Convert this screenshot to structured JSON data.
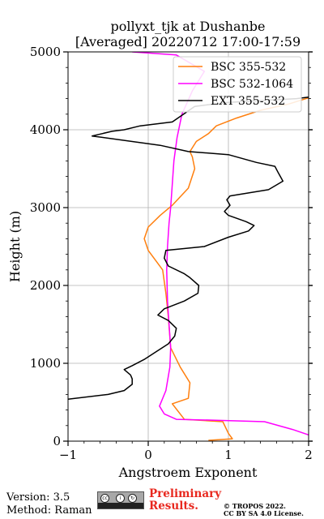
{
  "chart_data": {
    "type": "line",
    "title_line1": "pollyxt_tjk at Dushanbe",
    "title_line2": "[Averaged] 20220712 17:00-17:59",
    "xlabel": "Angstroem Exponent",
    "ylabel": "Height (m)",
    "xlim": [
      -1,
      2
    ],
    "ylim": [
      0,
      5000
    ],
    "xticks": [
      -1,
      0,
      1,
      2
    ],
    "xtick_labels": [
      "−1",
      "0",
      "1",
      "2"
    ],
    "yticks": [
      0,
      1000,
      2000,
      3000,
      4000,
      5000
    ],
    "ytick_labels": [
      "0",
      "1000",
      "2000",
      "3000",
      "4000",
      "5000"
    ],
    "grid": true,
    "legend_position": "top-right",
    "series": [
      {
        "name": "BSC 355-532",
        "color": "#ff7f0e",
        "points": [
          [
            0.75,
            10
          ],
          [
            1.05,
            30
          ],
          [
            1.0,
            100
          ],
          [
            0.93,
            250
          ],
          [
            0.45,
            280
          ],
          [
            0.3,
            480
          ],
          [
            0.5,
            550
          ],
          [
            0.52,
            750
          ],
          [
            0.4,
            950
          ],
          [
            0.28,
            1200
          ],
          [
            0.25,
            1600
          ],
          [
            0.22,
            1900
          ],
          [
            0.18,
            2200
          ],
          [
            0.0,
            2450
          ],
          [
            -0.05,
            2600
          ],
          [
            0.0,
            2750
          ],
          [
            0.15,
            2900
          ],
          [
            0.3,
            3030
          ],
          [
            0.5,
            3250
          ],
          [
            0.58,
            3500
          ],
          [
            0.55,
            3650
          ],
          [
            0.52,
            3720
          ],
          [
            0.6,
            3850
          ],
          [
            0.75,
            3950
          ],
          [
            0.85,
            4050
          ],
          [
            1.1,
            4150
          ],
          [
            1.4,
            4250
          ],
          [
            1.75,
            4330
          ],
          [
            2.0,
            4410
          ]
        ]
      },
      {
        "name": "BSC 532-1064",
        "color": "#ff00ff",
        "points": [
          [
            2.0,
            80
          ],
          [
            1.8,
            150
          ],
          [
            1.45,
            250
          ],
          [
            0.8,
            270
          ],
          [
            0.35,
            280
          ],
          [
            0.2,
            350
          ],
          [
            0.14,
            450
          ],
          [
            0.22,
            650
          ],
          [
            0.27,
            950
          ],
          [
            0.28,
            1200
          ],
          [
            0.26,
            1500
          ],
          [
            0.24,
            1800
          ],
          [
            0.23,
            2200
          ],
          [
            0.24,
            2500
          ],
          [
            0.26,
            2800
          ],
          [
            0.28,
            3000
          ],
          [
            0.3,
            3300
          ],
          [
            0.32,
            3600
          ],
          [
            0.36,
            3900
          ],
          [
            0.42,
            4200
          ],
          [
            0.55,
            4500
          ],
          [
            0.7,
            4750
          ],
          [
            0.35,
            4960
          ],
          [
            -0.2,
            5000
          ]
        ]
      },
      {
        "name": "EXT 355-532",
        "color": "#000000",
        "points": [
          [
            -1.0,
            540
          ],
          [
            -0.5,
            600
          ],
          [
            -0.3,
            650
          ],
          [
            -0.2,
            730
          ],
          [
            -0.2,
            800
          ],
          [
            -0.22,
            850
          ],
          [
            -0.3,
            920
          ],
          [
            -0.2,
            970
          ],
          [
            -0.05,
            1050
          ],
          [
            0.1,
            1150
          ],
          [
            0.25,
            1250
          ],
          [
            0.33,
            1350
          ],
          [
            0.35,
            1450
          ],
          [
            0.25,
            1550
          ],
          [
            0.12,
            1620
          ],
          [
            0.2,
            1700
          ],
          [
            0.45,
            1800
          ],
          [
            0.62,
            1900
          ],
          [
            0.63,
            2000
          ],
          [
            0.52,
            2100
          ],
          [
            0.45,
            2150
          ],
          [
            0.25,
            2250
          ],
          [
            0.2,
            2350
          ],
          [
            0.22,
            2450
          ],
          [
            0.7,
            2500
          ],
          [
            1.0,
            2620
          ],
          [
            1.25,
            2700
          ],
          [
            1.32,
            2770
          ],
          [
            1.22,
            2820
          ],
          [
            1.0,
            2900
          ],
          [
            0.95,
            2950
          ],
          [
            1.02,
            3030
          ],
          [
            0.98,
            3100
          ],
          [
            1.02,
            3150
          ],
          [
            1.5,
            3230
          ],
          [
            1.68,
            3340
          ],
          [
            1.62,
            3450
          ],
          [
            1.58,
            3530
          ],
          [
            1.35,
            3580
          ],
          [
            1.0,
            3680
          ],
          [
            0.5,
            3720
          ],
          [
            0.15,
            3800
          ],
          [
            -0.7,
            3920
          ],
          [
            -0.45,
            3980
          ],
          [
            -0.3,
            4000
          ],
          [
            -0.1,
            4050
          ],
          [
            0.3,
            4100
          ],
          [
            0.58,
            4300
          ],
          [
            0.98,
            4350
          ],
          [
            1.5,
            4380
          ],
          [
            1.85,
            4400
          ],
          [
            2.0,
            4420
          ]
        ]
      }
    ]
  },
  "footer": {
    "version": "Version: 3.5",
    "method": "Method: Raman",
    "preliminary_line1": "Preliminary",
    "preliminary_line2": "Results.",
    "copyright_line1": "© TROPOS 2022.",
    "copyright_line2": "CC BY SA 4.0 License.",
    "cc_badge_text": "BY SA"
  }
}
